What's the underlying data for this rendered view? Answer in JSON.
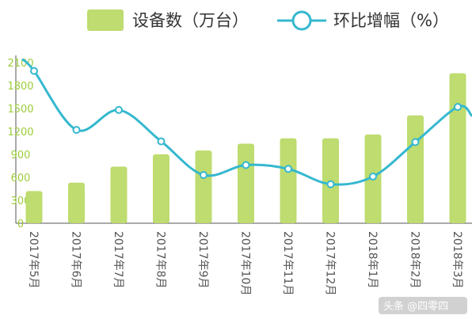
{
  "legend": {
    "bar_label": "设备数（万台）",
    "line_label": "环比增幅（%）"
  },
  "watermark": "头条 @四零四",
  "colors": {
    "bar": "#bedc6f",
    "line": "#35b8cf",
    "tick": "#9ccc3c",
    "axis": "#555555"
  },
  "chart_data": {
    "type": "bar",
    "title": "",
    "xlabel": "",
    "ylabel": "",
    "ylim": [
      0,
      2100
    ],
    "yticks": [
      0,
      300,
      600,
      900,
      1200,
      1500,
      1800,
      2100
    ],
    "grid": false,
    "legend_position": "top",
    "categories": [
      "2017年5月",
      "2017年6月",
      "2017年7月",
      "2017年8月",
      "2017年9月",
      "2017年10月",
      "2017年11月",
      "2017年12月",
      "2018年1月",
      "2018年2月",
      "2018年3月"
    ],
    "series": [
      {
        "name": "设备数（万台）",
        "type": "bar",
        "values": [
          420,
          530,
          740,
          900,
          950,
          1040,
          1110,
          1110,
          1160,
          1410,
          1960
        ]
      },
      {
        "name": "环比增幅（%）",
        "type": "line",
        "values": [
          1990,
          1220,
          1480,
          1070,
          630,
          760,
          710,
          510,
          610,
          1060,
          1520
        ]
      }
    ]
  }
}
